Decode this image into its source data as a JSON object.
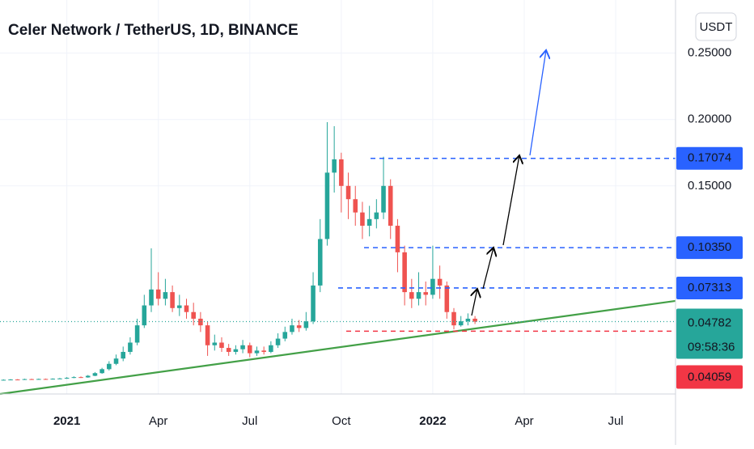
{
  "chart_data": {
    "type": "candlestick",
    "title": "Celer Network / TetherUS, 1D, BINANCE",
    "currency": "USDT",
    "countdown": "09:58:36",
    "up_color": "#26a69a",
    "down_color": "#ef5350",
    "categories": [
      null,
      null,
      null,
      null,
      null,
      null,
      null,
      null,
      null,
      "2021",
      null,
      null,
      null,
      null,
      null,
      null,
      null,
      null,
      null,
      null,
      null,
      null,
      "Apr",
      null,
      null,
      null,
      null,
      null,
      null,
      null,
      null,
      null,
      null,
      null,
      null,
      "Jul",
      null,
      null,
      null,
      null,
      null,
      null,
      null,
      null,
      null,
      null,
      null,
      null,
      "Oct",
      null,
      null,
      null,
      null,
      null,
      null,
      null,
      null,
      null,
      null,
      null,
      null,
      "2022",
      null,
      null,
      null,
      null,
      null,
      null,
      null,
      null,
      null,
      null,
      null,
      null,
      "Apr",
      null,
      null,
      null,
      null,
      null,
      null,
      null,
      null,
      null,
      null,
      null,
      null,
      "Jul",
      null,
      null,
      null,
      null,
      null,
      null,
      null,
      null
    ],
    "open": [
      0.0039,
      0.004,
      0.0042,
      0.0041,
      0.0045,
      0.0043,
      0.0046,
      0.0044,
      0.0048,
      0.005,
      0.0055,
      0.006,
      0.0058,
      0.007,
      0.009,
      0.012,
      0.016,
      0.02,
      0.025,
      0.032,
      0.045,
      0.06,
      0.072,
      0.065,
      0.07,
      0.058,
      0.06,
      0.055,
      0.05,
      0.045,
      0.03,
      0.032,
      0.028,
      0.025,
      0.027,
      0.03,
      0.024,
      0.026,
      0.025,
      0.03,
      0.035,
      0.04,
      0.045,
      0.043,
      0.048,
      0.075,
      0.11,
      0.16,
      0.17,
      0.15,
      0.14,
      0.13,
      0.12,
      0.125,
      0.13,
      0.15,
      0.12,
      0.1,
      0.07,
      0.065,
      0.07,
      0.068,
      0.08,
      0.075,
      0.055,
      0.045,
      0.048,
      0.05,
      null,
      null,
      null,
      null,
      null,
      null,
      null,
      null,
      null,
      null,
      null,
      null,
      null,
      null,
      null,
      null,
      null,
      null,
      null,
      null,
      null,
      null,
      null,
      null,
      null,
      null,
      null,
      null
    ],
    "high": [
      0.0043,
      0.0045,
      0.0045,
      0.0048,
      0.0048,
      0.0049,
      0.0049,
      0.0051,
      0.0054,
      0.006,
      0.0066,
      0.0065,
      0.0076,
      0.0098,
      0.013,
      0.018,
      0.023,
      0.029,
      0.036,
      0.05,
      0.068,
      0.103,
      0.085,
      0.08,
      0.075,
      0.068,
      0.065,
      0.062,
      0.055,
      0.048,
      0.038,
      0.036,
      0.031,
      0.03,
      0.034,
      0.032,
      0.029,
      0.029,
      0.033,
      0.039,
      0.044,
      0.05,
      0.049,
      0.055,
      0.085,
      0.125,
      0.198,
      0.195,
      0.175,
      0.16,
      0.15,
      0.138,
      0.135,
      0.14,
      0.172,
      0.155,
      0.125,
      0.105,
      0.08,
      0.085,
      0.078,
      0.105,
      0.09,
      0.078,
      0.058,
      0.052,
      0.054,
      0.052,
      null,
      null,
      null,
      null,
      null,
      null,
      null,
      null,
      null,
      null,
      null,
      null,
      null,
      null,
      null,
      null,
      null,
      null,
      null,
      null,
      null,
      null,
      null,
      null,
      null,
      null,
      null,
      null
    ],
    "low": [
      0.0037,
      0.0038,
      0.0039,
      0.0039,
      0.0041,
      0.0041,
      0.0042,
      0.0042,
      0.0046,
      0.0047,
      0.0052,
      0.0054,
      0.0055,
      0.0067,
      0.0085,
      0.011,
      0.015,
      0.018,
      0.023,
      0.03,
      0.043,
      0.055,
      0.06,
      0.06,
      0.055,
      0.052,
      0.05,
      0.045,
      0.04,
      0.022,
      0.026,
      0.025,
      0.022,
      0.023,
      0.024,
      0.021,
      0.022,
      0.023,
      0.024,
      0.028,
      0.033,
      0.038,
      0.04,
      0.041,
      0.046,
      0.07,
      0.105,
      0.145,
      0.13,
      0.125,
      0.12,
      0.11,
      0.112,
      0.118,
      0.125,
      0.11,
      0.085,
      0.06,
      0.058,
      0.06,
      0.06,
      0.065,
      0.065,
      0.05,
      0.042,
      0.044,
      0.045,
      0.046,
      null,
      null,
      null,
      null,
      null,
      null,
      null,
      null,
      null,
      null,
      null,
      null,
      null,
      null,
      null,
      null,
      null,
      null,
      null,
      null,
      null,
      null,
      null,
      null,
      null,
      null,
      null,
      null
    ],
    "close": [
      0.004,
      0.0042,
      0.0041,
      0.0045,
      0.0043,
      0.0046,
      0.0044,
      0.0048,
      0.005,
      0.0055,
      0.006,
      0.0058,
      0.007,
      0.009,
      0.012,
      0.016,
      0.02,
      0.025,
      0.032,
      0.045,
      0.06,
      0.072,
      0.065,
      0.07,
      0.058,
      0.06,
      0.055,
      0.05,
      0.045,
      0.03,
      0.032,
      0.028,
      0.025,
      0.027,
      0.03,
      0.024,
      0.026,
      0.025,
      0.03,
      0.035,
      0.04,
      0.045,
      0.043,
      0.048,
      0.075,
      0.11,
      0.16,
      0.17,
      0.15,
      0.14,
      0.13,
      0.12,
      0.125,
      0.13,
      0.15,
      0.12,
      0.1,
      0.07,
      0.065,
      0.07,
      0.068,
      0.08,
      0.075,
      0.055,
      0.045,
      0.048,
      0.05,
      0.0478,
      null,
      null,
      null,
      null,
      null,
      null,
      null,
      null,
      null,
      null,
      null,
      null,
      null,
      null,
      null,
      null,
      null,
      null,
      null,
      null,
      null,
      null,
      null,
      null,
      null,
      null,
      null,
      null
    ],
    "ylim": [
      -0.0067,
      0.29
    ],
    "yticks": [
      {
        "value": 0.25,
        "label": "0.25000"
      },
      {
        "value": 0.2,
        "label": "0.20000"
      },
      {
        "value": 0.15,
        "label": "0.15000"
      }
    ],
    "levels": [
      {
        "value": 0.17074,
        "label": "0.17074",
        "color": "#2962ff"
      },
      {
        "value": 0.1035,
        "label": "0.10350",
        "color": "#2962ff"
      },
      {
        "value": 0.07313,
        "label": "0.07313",
        "color": "#2962ff"
      }
    ],
    "last_price": {
      "value": 0.04782,
      "label": "0.04782",
      "color": "#26a69a"
    },
    "support": {
      "value": 0.04059,
      "label": "0.04059",
      "color": "#f23645"
    },
    "trendline": {
      "color": "#43a047",
      "values": [
        -0.0067,
        0.0634
      ]
    },
    "grid": true
  }
}
